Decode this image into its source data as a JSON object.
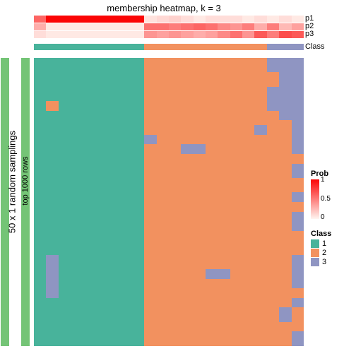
{
  "title": "membership heatmap, k = 3",
  "side_labels": {
    "outer": "50 x 1 random samplings",
    "inner": "top 1000 rows"
  },
  "side_bar_colors": {
    "outer": "#74c476",
    "inner": "#74c476"
  },
  "colors": {
    "class1": "#48b39b",
    "class2": "#f2915f",
    "class3": "#8f95c2",
    "background": "#ffffff"
  },
  "prob_gradient": {
    "min": "#fff5f0",
    "max": "#fb0505"
  },
  "prob_ticks": [
    "1",
    "0.5",
    "0"
  ],
  "n_cols": 22,
  "prob_strips": [
    {
      "label": "p1",
      "values": [
        0.6,
        1,
        1,
        1,
        1,
        1,
        1,
        1,
        1,
        0.08,
        0.12,
        0.15,
        0.1,
        0.05,
        0.1,
        0.1,
        0.1,
        0.05,
        0.1,
        0.05,
        0.1,
        0.05
      ]
    },
    {
      "label": "p2",
      "values": [
        0.3,
        0.05,
        0.05,
        0.05,
        0.05,
        0.05,
        0.05,
        0.05,
        0.05,
        0.55,
        0.55,
        0.5,
        0.55,
        0.6,
        0.55,
        0.45,
        0.4,
        0.5,
        0.3,
        0.5,
        0.25,
        0.35
      ]
    },
    {
      "label": "p3",
      "values": [
        0.1,
        0.05,
        0.05,
        0.05,
        0.05,
        0.05,
        0.05,
        0.05,
        0.05,
        0.4,
        0.35,
        0.4,
        0.35,
        0.3,
        0.35,
        0.45,
        0.55,
        0.4,
        0.65,
        0.5,
        0.7,
        0.65
      ]
    }
  ],
  "class_strip": {
    "label": "Class",
    "values": [
      "1",
      "1",
      "1",
      "1",
      "1",
      "1",
      "1",
      "1",
      "1",
      "2",
      "2",
      "2",
      "2",
      "2",
      "2",
      "2",
      "2",
      "2",
      "2",
      "3",
      "3",
      "3"
    ]
  },
  "heatmap_rows": [
    "1111111112222222222333",
    "1111111112222222222333",
    "1111111112222222222333",
    "1111111112222222222233",
    "1111111112222222222233",
    "1111111112222222222233",
    "1111111112222222222333",
    "1111111112222222222333",
    "1111111112222222222333",
    "1211111112222222222333",
    "1211111112222222222333",
    "1111111112222222222233",
    "1111111112222222222233",
    "1111111112222222222223",
    "1111111112222222223223",
    "1111111112222222223223",
    "1111111113222222222223",
    "1111111113222222222223",
    "1111111112223322222223",
    "1111111112223322222223",
    "1111111112222222222222",
    "1111111112222222222222",
    "1111111112222222222223",
    "1111111112222222222223",
    "1111111112222222222223",
    "1111111112222222222222",
    "1111111112222222222222",
    "1111111112222222222222",
    "1111111112222222222223",
    "1111111112222222222223",
    "1111111112222222222222",
    "1111111112222222222222",
    "1111111112222222222223",
    "1111111112222222222223",
    "1111111112222222222223",
    "1111111112222222222223",
    "1111111112222222222222",
    "1111111112222222222222",
    "1111111112222222222222",
    "1111111112222222222222",
    "1111111112222222222222",
    "1311111112222222222223",
    "1311111112222222222223",
    "1311111112222222222223",
    "1311111112222233222223",
    "1311111112222233222223",
    "1311111112222222222223",
    "1311111112222222222223",
    "1311111112222222222222",
    "1311111112222222222222",
    "1111111112222222222223",
    "1111111112222222222223",
    "1111111112222222222232",
    "1111111112222222222232",
    "1111111112222222222232",
    "1111111112222222222222",
    "1111111112222222222222",
    "1111111112222222222223",
    "1111111112222222222223",
    "1111111112222222222223"
  ],
  "legend_prob": {
    "title": "Prob"
  },
  "legend_class": {
    "title": "Class",
    "items": [
      {
        "label": "1",
        "color_key": "class1"
      },
      {
        "label": "2",
        "color_key": "class2"
      },
      {
        "label": "3",
        "color_key": "class3"
      }
    ]
  }
}
